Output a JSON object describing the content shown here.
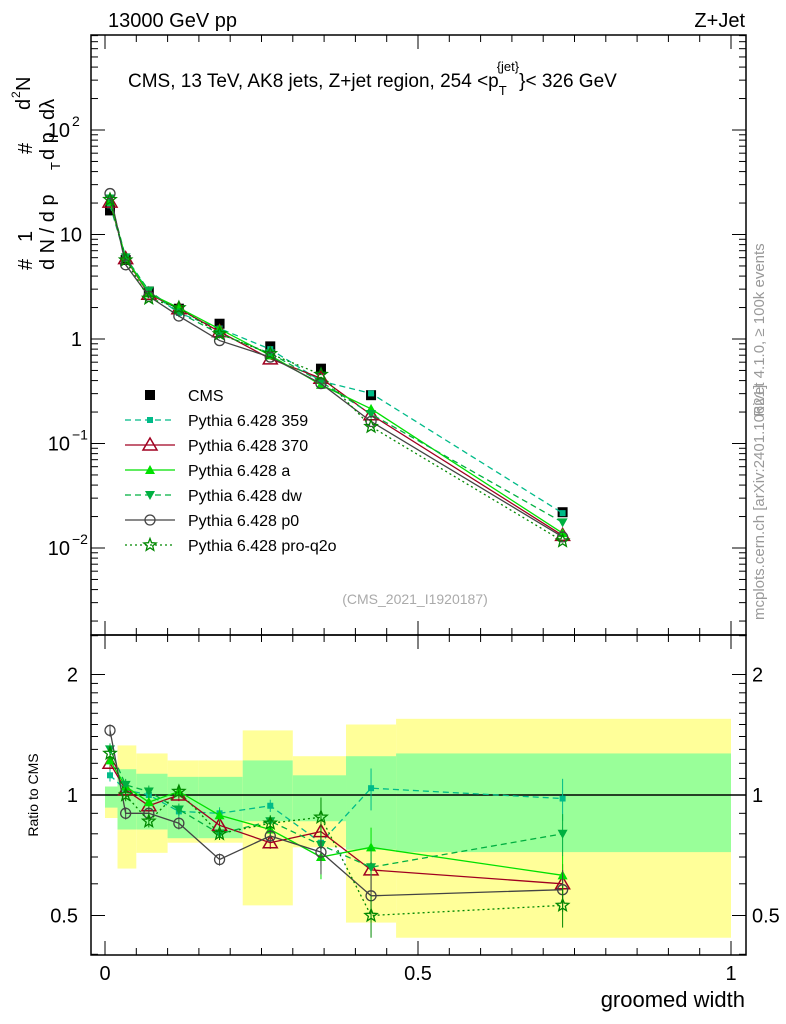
{
  "header": {
    "left": "13000 GeV pp",
    "right": "Z+Jet"
  },
  "side": {
    "rivet": "Rivet 4.1.0, ≥ 100k events",
    "mcplots": "mcplots.cern.ch [arXiv:2401.10621]"
  },
  "chart_data": [
    {
      "type": "line",
      "title": "CMS, 13 TeV, AK8 jets, Z+jet region, 254 <p_T^{jet}> < 326 GeV",
      "title_parts": {
        "pre": "CMS, 13 TeV, AK8 jets, Z+jet region, 254 <p",
        "sub": "T",
        "sup": "{jet}",
        "post": "}< 326 GeV"
      },
      "ylabel": "1/N dN/dp_T dλ",
      "ylabel_parts": {
        "a": "#",
        "b": "1",
        "c": "d N / d p",
        "d": "T",
        "e": "#",
        "f": "d",
        "g": "2",
        "h": "N",
        "i": "d p",
        "j": "T",
        "k": "dλ"
      },
      "yscale": "log",
      "ylim": [
        0.0015,
        800
      ],
      "xlim": [
        -0.02,
        1.02
      ],
      "ytick_labels": [
        {
          "v": 0.01,
          "b": "10",
          "e": "−2"
        },
        {
          "v": 0.1,
          "b": "10",
          "e": "−1"
        },
        {
          "v": 1,
          "b": "1",
          "e": ""
        },
        {
          "v": 10,
          "b": "10",
          "e": ""
        },
        {
          "v": 100,
          "b": "10",
          "e": "2"
        }
      ],
      "watermark": "(CMS_2021_I1920187)",
      "legend_position": "center-left",
      "x": [
        0.008,
        0.033,
        0.07,
        0.118,
        0.183,
        0.264,
        0.345,
        0.425,
        0.731
      ],
      "cms": {
        "name": "CMS",
        "values": [
          17,
          5.7,
          2.85,
          1.95,
          1.4,
          0.85,
          0.52,
          0.29,
          0.022
        ]
      }
    },
    {
      "type": "line",
      "ylabel": "Ratio to CMS",
      "xlabel": "groomed width",
      "yscale": "log",
      "ylim": [
        0.4,
        2.5
      ],
      "ytick_labels": [
        "0.5",
        "1",
        "2"
      ],
      "xtick_labels": [
        "0",
        "0.5",
        "1"
      ],
      "bin_edges": [
        0,
        0.02,
        0.05,
        0.1,
        0.15,
        0.22,
        0.3,
        0.385,
        0.465,
        1.0
      ],
      "band_yellow": [
        [
          0.876,
          1.05
        ],
        [
          0.655,
          1.33
        ],
        [
          0.717,
          1.27
        ],
        [
          0.76,
          1.22
        ],
        [
          0.76,
          1.22
        ],
        [
          0.53,
          1.45
        ],
        [
          0.74,
          1.25
        ],
        [
          0.48,
          1.5
        ],
        [
          0.44,
          1.55
        ]
      ],
      "band_green": [
        [
          0.93,
          1.05
        ],
        [
          0.82,
          1.16
        ],
        [
          0.82,
          1.13
        ],
        [
          0.78,
          1.11
        ],
        [
          0.78,
          1.11
        ],
        [
          0.86,
          1.22
        ],
        [
          0.86,
          1.12
        ],
        [
          0.73,
          1.25
        ],
        [
          0.72,
          1.27
        ]
      ]
    }
  ],
  "series": [
    {
      "name": "Pythia 6.428 359",
      "color": "#00bb88",
      "marker": "square",
      "dash": "6,4",
      "ratio": [
        1.12,
        1.03,
        1.0,
        0.91,
        0.9,
        0.94,
        0.76,
        1.04,
        0.98
      ]
    },
    {
      "name": "Pythia 6.428 370",
      "color": "#a00020",
      "marker": "tri-open",
      "dash": "",
      "ratio": [
        1.2,
        1.03,
        0.94,
        1.0,
        0.84,
        0.76,
        0.81,
        0.65,
        0.6
      ]
    },
    {
      "name": "Pythia 6.428 a",
      "color": "#00e000",
      "marker": "tri",
      "dash": "",
      "ratio": [
        1.22,
        1.05,
        0.96,
        1.02,
        0.89,
        0.82,
        0.7,
        0.74,
        0.63
      ]
    },
    {
      "name": "Pythia 6.428 dw",
      "color": "#00b040",
      "marker": "tri-down",
      "dash": "6,4",
      "ratio": [
        1.3,
        1.06,
        1.02,
        0.92,
        0.8,
        0.86,
        0.75,
        0.66,
        0.8
      ]
    },
    {
      "name": "Pythia 6.428 p0",
      "color": "#444444",
      "marker": "circle-open",
      "dash": "",
      "ratio": [
        1.45,
        0.9,
        0.9,
        0.85,
        0.69,
        0.79,
        0.72,
        0.56,
        0.58
      ]
    },
    {
      "name": "Pythia 6.428 pro-q2o",
      "color": "#008800",
      "marker": "star",
      "dash": "2,3",
      "ratio": [
        1.27,
        1.0,
        0.86,
        1.02,
        0.8,
        0.85,
        0.88,
        0.5,
        0.53
      ]
    }
  ]
}
